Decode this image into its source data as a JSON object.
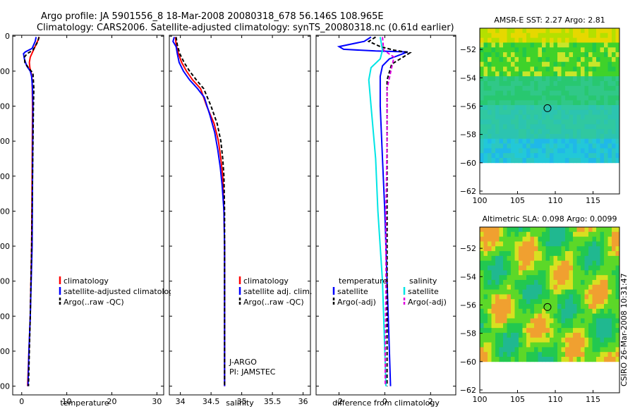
{
  "header": {
    "title_line1": "Argo profile: JA 5901556_8 18-Mar-2008 20080318_678 56.146S 108.965E",
    "title_line2": "Climatology: CARS2006. Satellite-adjusted climatology: synTS_20080318.nc (0.61d earlier)"
  },
  "side_label": "CSIRO 26-Mar-2008 10:31:47",
  "colors": {
    "climatology": "#ff0000",
    "satellite": "#0000ff",
    "argo": "#000000",
    "sal_sat": "#00e5e5",
    "sal_argo": "#e000e0"
  },
  "chart_data": [
    {
      "id": "temp",
      "type": "line",
      "xlabel": "temperature",
      "ylabel": "",
      "xlim": [
        -2,
        31.5
      ],
      "ylim": [
        2050,
        -5
      ],
      "y_reversed": true,
      "xticks": [
        0,
        10,
        20,
        30
      ],
      "yticks": [
        0,
        200,
        400,
        600,
        800,
        1000,
        1200,
        1400,
        1600,
        1800,
        2000
      ],
      "series": [
        {
          "name": "climatology",
          "color": "#ff0000",
          "dash": "",
          "points": [
            [
              3.9,
              5
            ],
            [
              3.5,
              30
            ],
            [
              2.6,
              80
            ],
            [
              1.9,
              120
            ],
            [
              1.7,
              150
            ],
            [
              1.8,
              180
            ],
            [
              2.1,
              210
            ],
            [
              2.3,
              250
            ],
            [
              2.4,
              400
            ],
            [
              2.3,
              800
            ],
            [
              2.2,
              1200
            ],
            [
              1.9,
              1600
            ],
            [
              1.6,
              1800
            ],
            [
              1.3,
              2000
            ]
          ]
        },
        {
          "name": "satellite-adjusted climatology",
          "color": "#0000ff",
          "dash": "",
          "points": [
            [
              3.2,
              5
            ],
            [
              3.0,
              30
            ],
            [
              2.3,
              70
            ],
            [
              0.8,
              90
            ],
            [
              0.4,
              100
            ],
            [
              0.6,
              130
            ],
            [
              1.1,
              170
            ],
            [
              1.9,
              200
            ],
            [
              2.2,
              230
            ],
            [
              2.4,
              300
            ],
            [
              2.5,
              400
            ],
            [
              2.4,
              800
            ],
            [
              2.3,
              1200
            ],
            [
              1.9,
              1600
            ],
            [
              1.6,
              1800
            ],
            [
              1.4,
              2000
            ]
          ]
        },
        {
          "name": "Argo(..raw -QC)",
          "color": "#000000",
          "dash": "5,3",
          "points": [
            [
              3.8,
              5
            ],
            [
              3.6,
              30
            ],
            [
              2.5,
              80
            ],
            [
              1.2,
              100
            ],
            [
              0.6,
              120
            ],
            [
              0.7,
              150
            ],
            [
              1.6,
              185
            ],
            [
              2.5,
              210
            ],
            [
              2.7,
              300
            ],
            [
              2.6,
              400
            ],
            [
              2.4,
              800
            ],
            [
              2.2,
              1200
            ],
            [
              1.9,
              1600
            ],
            [
              1.7,
              1800
            ],
            [
              1.5,
              2000
            ]
          ]
        }
      ],
      "legend": {
        "placement": "bottom-right"
      }
    },
    {
      "id": "sal",
      "type": "line",
      "xlabel": "salinity",
      "ylabel": "",
      "xlim": [
        33.82,
        36.12
      ],
      "ylim": [
        2050,
        -5
      ],
      "y_reversed": true,
      "xticks": [
        34,
        34.5,
        35,
        35.5,
        36
      ],
      "xtick_labels": [
        "34",
        "34.5",
        "35",
        "35.5",
        "36"
      ],
      "series": [
        {
          "name": "climatology",
          "color": "#ff0000",
          "dash": "",
          "points": [
            [
              33.92,
              5
            ],
            [
              33.93,
              50
            ],
            [
              33.97,
              100
            ],
            [
              34.02,
              150
            ],
            [
              34.1,
              200
            ],
            [
              34.2,
              250
            ],
            [
              34.33,
              300
            ],
            [
              34.43,
              400
            ],
            [
              34.55,
              500
            ],
            [
              34.62,
              600
            ],
            [
              34.66,
              700
            ],
            [
              34.69,
              800
            ],
            [
              34.71,
              1000
            ],
            [
              34.72,
              1200
            ],
            [
              34.72,
              1600
            ],
            [
              34.72,
              2000
            ]
          ]
        },
        {
          "name": "satellite adj. clim.",
          "color": "#0000ff",
          "dash": "",
          "points": [
            [
              33.9,
              5
            ],
            [
              33.88,
              30
            ],
            [
              33.93,
              60
            ],
            [
              33.95,
              100
            ],
            [
              33.98,
              150
            ],
            [
              34.05,
              200
            ],
            [
              34.15,
              250
            ],
            [
              34.28,
              300
            ],
            [
              34.39,
              350
            ],
            [
              34.48,
              450
            ],
            [
              34.56,
              550
            ],
            [
              34.61,
              650
            ],
            [
              34.65,
              750
            ],
            [
              34.68,
              850
            ],
            [
              34.71,
              1000
            ],
            [
              34.72,
              1200
            ],
            [
              34.72,
              1600
            ],
            [
              34.72,
              2000
            ]
          ]
        },
        {
          "name": "Argo(..raw -QC)",
          "color": "#000000",
          "dash": "5,3",
          "points": [
            [
              33.93,
              5
            ],
            [
              33.95,
              50
            ],
            [
              33.99,
              100
            ],
            [
              34.06,
              150
            ],
            [
              34.15,
              200
            ],
            [
              34.26,
              250
            ],
            [
              34.38,
              300
            ],
            [
              34.5,
              400
            ],
            [
              34.6,
              500
            ],
            [
              34.66,
              600
            ],
            [
              34.69,
              700
            ],
            [
              34.71,
              800
            ],
            [
              34.72,
              1000
            ],
            [
              34.72,
              1200
            ],
            [
              34.72,
              1600
            ],
            [
              34.72,
              2000
            ]
          ]
        }
      ],
      "annotations": [
        "J-ARGO",
        "PI: JAMSTEC"
      ],
      "legend": {
        "placement": "bottom-right"
      }
    },
    {
      "id": "diff",
      "type": "line",
      "xlabel": "difference from climatology",
      "ylabel": "",
      "xlim": [
        -3,
        3.1
      ],
      "ylim": [
        2050,
        -5
      ],
      "y_reversed": true,
      "xticks": [
        -2,
        0,
        2
      ],
      "series": [
        {
          "name": "temperature satellite",
          "color": "#0000ff",
          "dash": "",
          "points": [
            [
              -0.6,
              5
            ],
            [
              -0.9,
              30
            ],
            [
              -2.0,
              60
            ],
            [
              -1.8,
              75
            ],
            [
              -0.4,
              85
            ],
            [
              1.0,
              90
            ],
            [
              0.7,
              105
            ],
            [
              0.2,
              130
            ],
            [
              -0.1,
              170
            ],
            [
              -0.2,
              230
            ],
            [
              -0.2,
              400
            ],
            [
              -0.1,
              700
            ],
            [
              0.0,
              1000
            ],
            [
              0.1,
              1400
            ],
            [
              0.2,
              1800
            ],
            [
              0.25,
              2000
            ]
          ]
        },
        {
          "name": "temperature Argo(-adj)",
          "color": "#000000",
          "dash": "5,3",
          "points": [
            [
              -0.4,
              5
            ],
            [
              -0.7,
              30
            ],
            [
              -0.2,
              60
            ],
            [
              0.4,
              80
            ],
            [
              1.1,
              95
            ],
            [
              0.8,
              120
            ],
            [
              0.3,
              160
            ],
            [
              0.1,
              250
            ],
            [
              0.1,
              500
            ],
            [
              0.1,
              900
            ],
            [
              0.1,
              1300
            ],
            [
              0.1,
              1700
            ],
            [
              0.1,
              2000
            ]
          ]
        },
        {
          "name": "salinity satellite",
          "color": "#00e5e5",
          "dash": "",
          "points": [
            [
              -0.2,
              5
            ],
            [
              -0.1,
              80
            ],
            [
              -0.2,
              130
            ],
            [
              -0.6,
              180
            ],
            [
              -0.7,
              250
            ],
            [
              -0.6,
              400
            ],
            [
              -0.4,
              700
            ],
            [
              -0.3,
              1000
            ],
            [
              -0.1,
              1400
            ],
            [
              0.0,
              1800
            ],
            [
              0.05,
              2000
            ]
          ]
        },
        {
          "name": "salinity Argo(-adj)",
          "color": "#e000e0",
          "dash": "5,3",
          "points": [
            [
              -0.1,
              5
            ],
            [
              -0.05,
              80
            ],
            [
              0.4,
              120
            ],
            [
              0.3,
              180
            ],
            [
              0.1,
              300
            ],
            [
              0.1,
              600
            ],
            [
              0.05,
              1000
            ],
            [
              0.05,
              1400
            ],
            [
              0.02,
              1800
            ],
            [
              0.02,
              2000
            ]
          ]
        }
      ],
      "legend": {
        "placement": "bottom",
        "groups": [
          {
            "heading": "temperature",
            "items": [
              {
                "name": "satellite",
                "color": "#0000ff",
                "dash": ""
              },
              {
                "name": "Argo(-adj)",
                "color": "#000000",
                "dash": "5,3"
              }
            ]
          },
          {
            "heading": "salinity",
            "items": [
              {
                "name": "satellite",
                "color": "#00e5e5",
                "dash": ""
              },
              {
                "name": "Argo(-adj)",
                "color": "#e000e0",
                "dash": "5,3"
              }
            ]
          }
        ]
      }
    },
    {
      "id": "sst",
      "type": "heatmap",
      "title": "AMSR-E SST: 2.27 Argo: 2.81",
      "xlim": [
        100,
        118.5
      ],
      "ylim": [
        -62.2,
        -50.5
      ],
      "xticks": [
        100,
        105,
        110,
        115
      ],
      "yticks": [
        -52,
        -54,
        -56,
        -58,
        -60,
        -62
      ],
      "data_lat_min": -60,
      "data_lat_max": -50.5,
      "marker": {
        "lon": 108.965,
        "lat": -56.146
      }
    },
    {
      "id": "sla",
      "type": "heatmap",
      "title": "Altimetric SLA: 0.098 Argo: 0.0099",
      "xlim": [
        100,
        118.5
      ],
      "ylim": [
        -62.2,
        -50.5
      ],
      "xticks": [
        100,
        105,
        110,
        115
      ],
      "yticks": [
        -52,
        -54,
        -56,
        -58,
        -60,
        -62
      ],
      "data_lat_min": -60,
      "data_lat_max": -50.5,
      "marker": {
        "lon": 108.965,
        "lat": -56.146
      }
    }
  ]
}
